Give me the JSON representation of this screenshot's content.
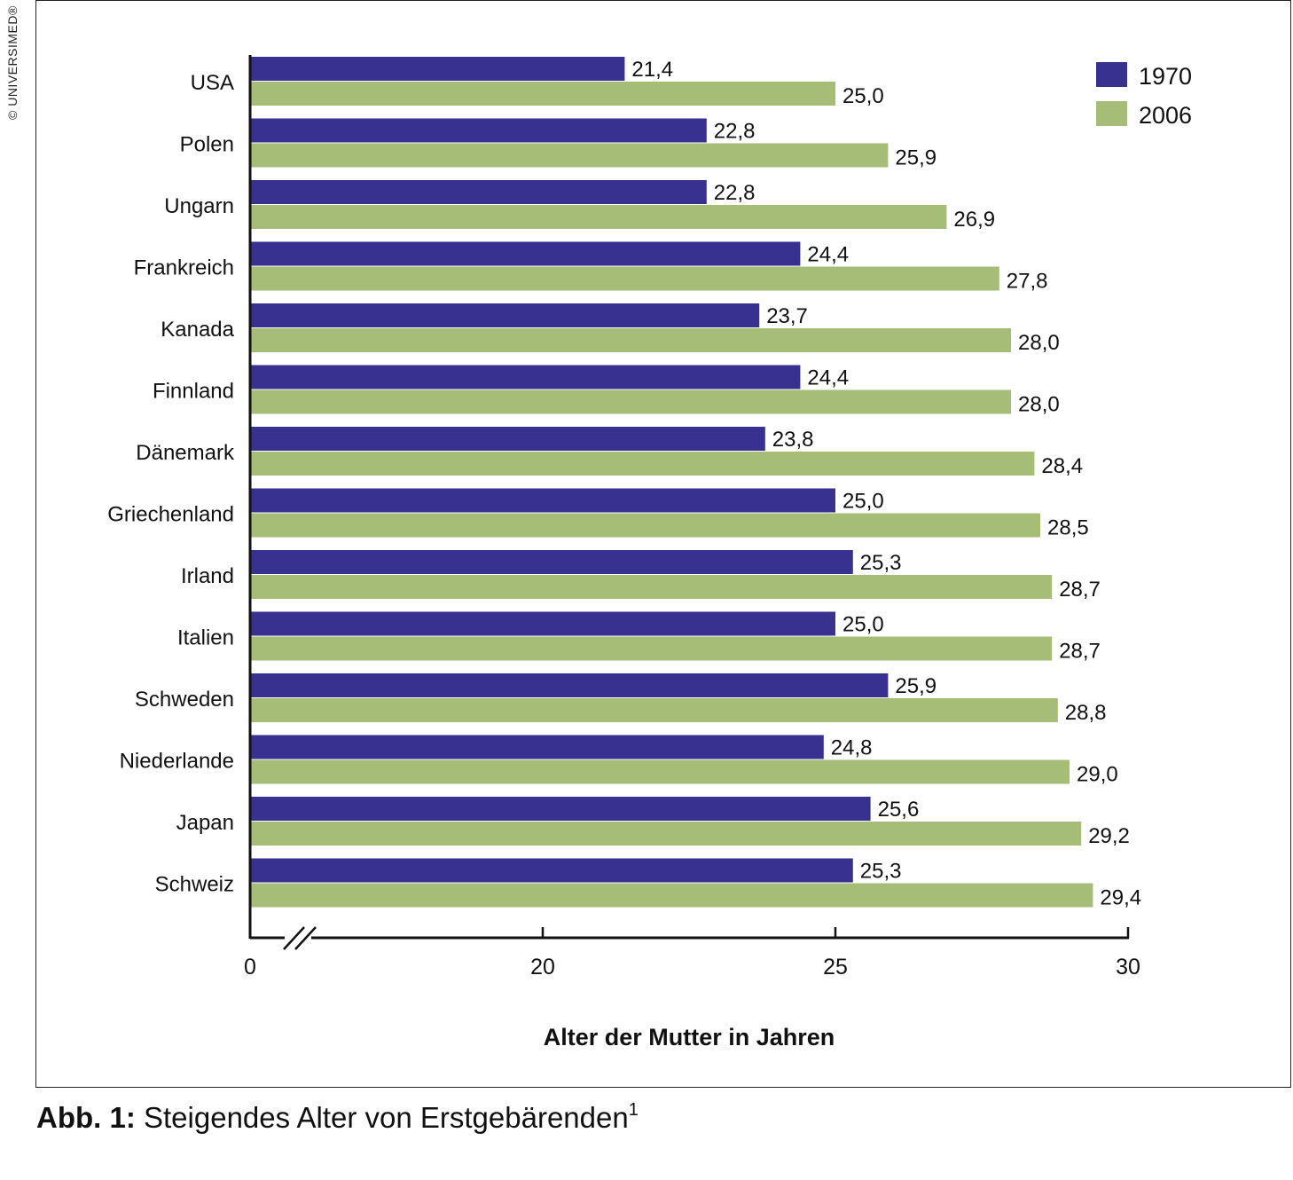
{
  "copyright": "© UNIVERSIMED®",
  "caption": {
    "prefix": "Abb. 1:",
    "text": "Steigendes Alter von Erstgebärenden",
    "sup": "1"
  },
  "colors": {
    "series_1970": "#38318f",
    "series_2006": "#a5bd76",
    "axis": "#111111"
  },
  "chart_data": {
    "type": "bar",
    "orientation": "horizontal",
    "title": "",
    "xlabel": "Alter der Mutter in Jahren",
    "ylabel": "",
    "xlim": [
      0,
      30
    ],
    "axis_break": "between 0 and 20",
    "x_ticks": [
      0,
      20,
      25,
      30
    ],
    "x_tick_labels": [
      "0",
      "20",
      "25",
      "30"
    ],
    "legend_position": "top-right",
    "grid": false,
    "categories": [
      "USA",
      "Polen",
      "Ungarn",
      "Frankreich",
      "Kanada",
      "Finnland",
      "Dänemark",
      "Griechenland",
      "Irland",
      "Italien",
      "Schweden",
      "Niederlande",
      "Japan",
      "Schweiz"
    ],
    "series": [
      {
        "name": "1970",
        "values": [
          21.4,
          22.8,
          22.8,
          24.4,
          23.7,
          24.4,
          23.8,
          25.0,
          25.3,
          25.0,
          25.9,
          24.8,
          25.6,
          25.3
        ],
        "labels": [
          "21,4",
          "22,8",
          "22,8",
          "24,4",
          "23,7",
          "24,4",
          "23,8",
          "25,0",
          "25,3",
          "25,0",
          "25,9",
          "24,8",
          "25,6",
          "25,3"
        ]
      },
      {
        "name": "2006",
        "values": [
          25.0,
          25.9,
          26.9,
          27.8,
          28.0,
          28.0,
          28.4,
          28.5,
          28.7,
          28.7,
          28.8,
          29.0,
          29.2,
          29.4
        ],
        "labels": [
          "25,0",
          "25,9",
          "26,9",
          "27,8",
          "28,0",
          "28,0",
          "28,4",
          "28,5",
          "28,7",
          "28,7",
          "28,8",
          "29,0",
          "29,2",
          "29,4"
        ]
      }
    ]
  }
}
